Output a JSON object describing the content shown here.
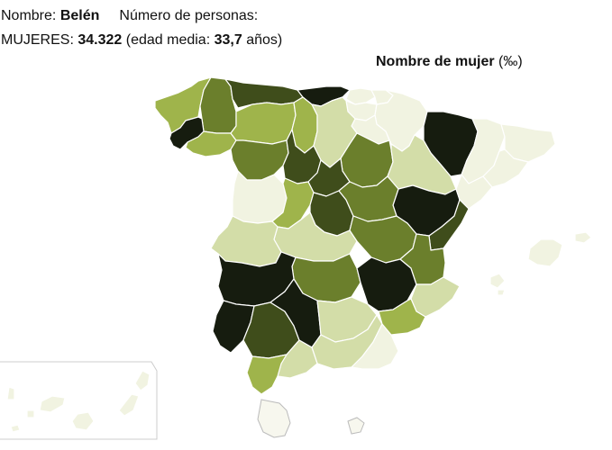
{
  "info": {
    "nombre_label": "Nombre:",
    "nombre_value": "Belén",
    "personas_label": "Número de personas:",
    "mujeres_label": "MUJERES:",
    "mujeres_value": "34.322",
    "edad_prefix": "(edad media:",
    "edad_value": "33,7",
    "edad_suffix": "años)"
  },
  "legend": {
    "title": "Nombre de mujer",
    "unit": "(‰)"
  },
  "colors": {
    "very_low": "#f1f3e1",
    "low": "#d3dda8",
    "mid": "#9fb44b",
    "high": "#6b7f2c",
    "very_high": "#3f4d1b",
    "max": "#161c0f"
  }
}
